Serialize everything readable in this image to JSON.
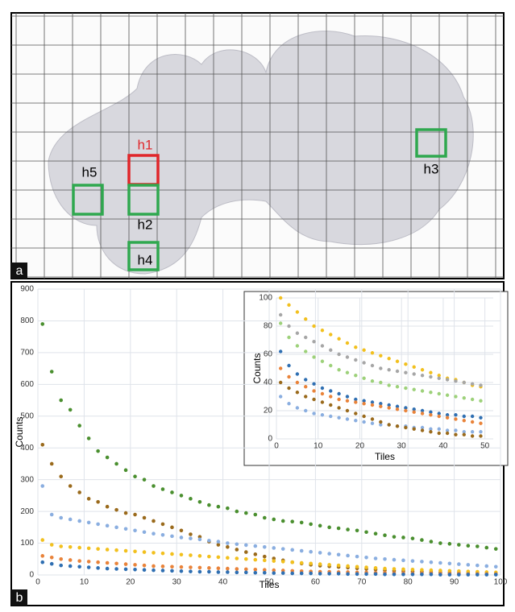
{
  "panel_a": {
    "label": "a",
    "regions": [
      "h1",
      "h2",
      "h3",
      "h4",
      "h5"
    ]
  },
  "panel_b": {
    "label": "b"
  },
  "chart_data": [
    {
      "type": "scatter",
      "x_label": "Tiles",
      "y_label": "Counts",
      "x": [
        1,
        3,
        5,
        7,
        9,
        11,
        13,
        15,
        17,
        19,
        21,
        23,
        25,
        27,
        29,
        31,
        33,
        35,
        37,
        39,
        41,
        43,
        45,
        47,
        49,
        51,
        53,
        55,
        57,
        59,
        61,
        63,
        65,
        67,
        69,
        71,
        73,
        75,
        77,
        79,
        81,
        83,
        85,
        87,
        89,
        91,
        93,
        95,
        97,
        99
      ],
      "xlim": [
        0,
        100
      ],
      "xticks": [
        0,
        10,
        20,
        30,
        40,
        50,
        60,
        70,
        80,
        90,
        100
      ],
      "ylim": [
        0,
        900
      ],
      "yticks": [
        0,
        100,
        200,
        300,
        400,
        500,
        600,
        700,
        800,
        900
      ],
      "grid": true,
      "series": [
        {
          "color": "#4a8f2f",
          "values": [
            790,
            640,
            550,
            520,
            470,
            430,
            390,
            370,
            350,
            330,
            310,
            300,
            280,
            270,
            260,
            250,
            240,
            230,
            220,
            215,
            210,
            200,
            195,
            190,
            180,
            175,
            170,
            168,
            165,
            160,
            155,
            150,
            147,
            143,
            140,
            135,
            130,
            125,
            120,
            118,
            115,
            110,
            105,
            100,
            98,
            95,
            92,
            90,
            86,
            82
          ]
        },
        {
          "color": "#9a6a1c",
          "values": [
            410,
            350,
            310,
            280,
            260,
            240,
            230,
            215,
            205,
            195,
            190,
            180,
            170,
            160,
            150,
            140,
            128,
            120,
            105,
            95,
            88,
            80,
            72,
            65,
            58,
            52,
            46,
            40,
            36,
            32,
            29,
            27,
            25,
            23,
            21,
            19,
            17,
            15,
            13,
            12,
            11,
            10,
            9,
            8,
            7,
            6,
            5,
            5,
            4,
            4
          ]
        },
        {
          "color": "#8aaee0",
          "values": [
            280,
            190,
            180,
            175,
            170,
            165,
            160,
            155,
            150,
            145,
            140,
            135,
            130,
            126,
            122,
            118,
            115,
            112,
            108,
            105,
            100,
            97,
            94,
            91,
            88,
            85,
            82,
            79,
            76,
            73,
            70,
            67,
            64,
            61,
            58,
            55,
            52,
            50,
            48,
            46,
            44,
            42,
            40,
            38,
            36,
            34,
            32,
            30,
            28,
            26
          ]
        },
        {
          "color": "#f2c01e",
          "values": [
            110,
            95,
            90,
            88,
            86,
            84,
            82,
            80,
            78,
            76,
            74,
            72,
            70,
            68,
            66,
            64,
            62,
            60,
            58,
            56,
            54,
            52,
            50,
            48,
            46,
            44,
            42,
            40,
            38,
            36,
            34,
            32,
            30,
            28,
            26,
            24,
            22,
            20,
            19,
            18,
            17,
            16,
            15,
            14,
            13,
            12,
            11,
            10,
            9,
            8
          ]
        },
        {
          "color": "#e9833a",
          "values": [
            60,
            55,
            50,
            47,
            44,
            42,
            40,
            38,
            36,
            34,
            32,
            30,
            28,
            27,
            26,
            25,
            24,
            23,
            22,
            21,
            20,
            19,
            18,
            17,
            16,
            15,
            14,
            13,
            12,
            11,
            10,
            10,
            9,
            9,
            8,
            8,
            7,
            7,
            6,
            6,
            5,
            5,
            5,
            4,
            4,
            4,
            3,
            3,
            3,
            3
          ]
        },
        {
          "color": "#2f6fb2",
          "values": [
            40,
            35,
            30,
            28,
            26,
            24,
            22,
            20,
            19,
            18,
            17,
            16,
            15,
            14,
            13,
            12,
            11,
            10,
            10,
            9,
            9,
            8,
            8,
            7,
            7,
            6,
            6,
            5,
            5,
            5,
            4,
            4,
            4,
            3,
            3,
            3,
            3,
            2,
            2,
            2,
            2,
            2,
            2,
            1,
            1,
            1,
            1,
            1,
            1,
            1
          ]
        }
      ]
    },
    {
      "type": "scatter",
      "x_label": "Tiles",
      "y_label": "Counts",
      "x": [
        1,
        3,
        5,
        7,
        9,
        11,
        13,
        15,
        17,
        19,
        21,
        23,
        25,
        27,
        29,
        31,
        33,
        35,
        37,
        39,
        41,
        43,
        45,
        47,
        49
      ],
      "xlim": [
        0,
        52
      ],
      "xticks": [
        0,
        10,
        20,
        30,
        40,
        50
      ],
      "ylim": [
        0,
        100
      ],
      "yticks": [
        0,
        20,
        40,
        60,
        80,
        100
      ],
      "grid": true,
      "series": [
        {
          "color": "#f2c01e",
          "values": [
            100,
            95,
            90,
            85,
            80,
            77,
            74,
            71,
            68,
            65,
            63,
            61,
            59,
            57,
            55,
            53,
            51,
            49,
            47,
            45,
            43,
            42,
            40,
            38,
            37
          ]
        },
        {
          "color": "#a6a6a6",
          "values": [
            88,
            80,
            75,
            72,
            69,
            66,
            63,
            60,
            58,
            56,
            54,
            52,
            50,
            49,
            48,
            47,
            46,
            45,
            44,
            43,
            42,
            41,
            40,
            39,
            38
          ]
        },
        {
          "color": "#9dd17a",
          "values": [
            82,
            72,
            66,
            62,
            58,
            55,
            52,
            49,
            47,
            45,
            43,
            41,
            40,
            38,
            37,
            36,
            35,
            34,
            33,
            32,
            31,
            30,
            29,
            28,
            27
          ]
        },
        {
          "color": "#2f6fb2",
          "values": [
            62,
            52,
            46,
            42,
            39,
            36,
            34,
            32,
            30,
            28,
            27,
            26,
            25,
            24,
            23,
            22,
            21,
            20,
            19,
            18,
            17,
            17,
            16,
            16,
            15
          ]
        },
        {
          "color": "#e9833a",
          "values": [
            50,
            44,
            40,
            37,
            34,
            32,
            30,
            28,
            27,
            26,
            25,
            24,
            23,
            22,
            21,
            20,
            19,
            18,
            17,
            16,
            15,
            14,
            13,
            12,
            11
          ]
        },
        {
          "color": "#8aaee0",
          "values": [
            30,
            25,
            22,
            20,
            18,
            17,
            16,
            15,
            14,
            13,
            12,
            11,
            10,
            10,
            9,
            9,
            8,
            8,
            7,
            7,
            6,
            6,
            5,
            5,
            5
          ]
        },
        {
          "color": "#9a6a1c",
          "values": [
            40,
            36,
            33,
            30,
            28,
            26,
            24,
            22,
            20,
            18,
            16,
            14,
            12,
            10,
            9,
            8,
            7,
            6,
            5,
            4,
            4,
            3,
            3,
            2,
            2
          ]
        }
      ]
    }
  ]
}
